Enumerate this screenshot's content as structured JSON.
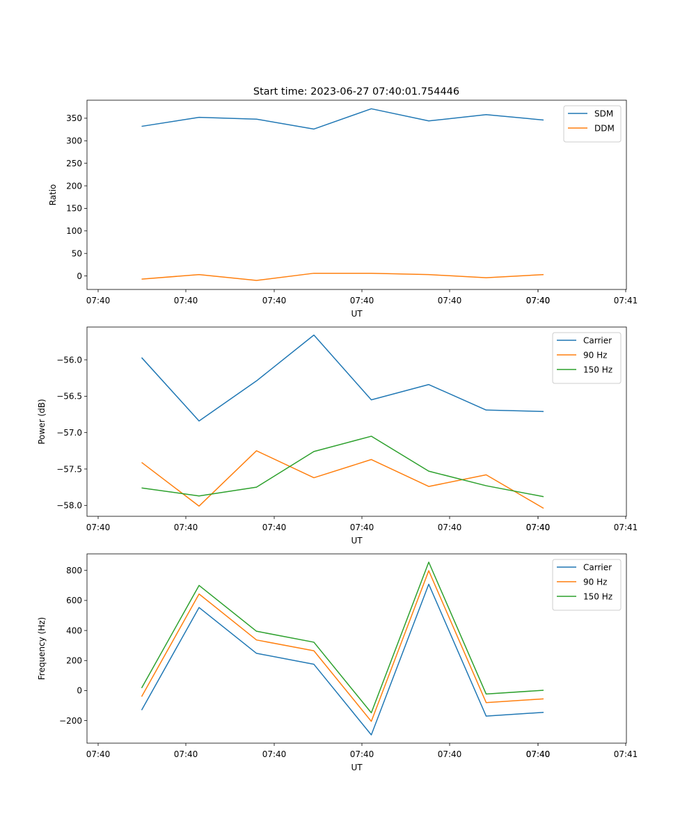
{
  "figure_title": "Start time: 2023-06-27 07:40:01.754446",
  "x_tick_labels": [
    "07:40",
    "07:40",
    "07:40",
    "07:40",
    "07:40",
    "07:40",
    "07:40",
    "07:41"
  ],
  "chart_data": [
    {
      "type": "line",
      "xlabel": "UT",
      "ylabel": "Ratio",
      "ylim": [
        -30,
        390
      ],
      "yticks": [
        0,
        50,
        100,
        150,
        200,
        250,
        300,
        350
      ],
      "ytick_labels": [
        "0",
        "50",
        "100",
        "150",
        "200",
        "250",
        "300",
        "350"
      ],
      "legend_position": "top-right",
      "grid": false,
      "series": [
        {
          "name": "SDM",
          "color": "#1f77b4",
          "values": [
            332,
            352,
            348,
            326,
            371,
            344,
            358,
            346
          ]
        },
        {
          "name": "DDM",
          "color": "#ff7f0e",
          "values": [
            -7,
            3,
            -10,
            6,
            6,
            3,
            -4,
            3
          ]
        }
      ]
    },
    {
      "type": "line",
      "xlabel": "UT",
      "ylabel": "Power (dB)",
      "ylim": [
        -58.15,
        -55.55
      ],
      "yticks": [
        -56.0,
        -56.5,
        -57.0,
        -57.5,
        -58.0
      ],
      "ytick_labels": [
        "−56.0",
        "−56.5",
        "−57.0",
        "−57.5",
        "−58.0"
      ],
      "legend_position": "top-right",
      "grid": false,
      "series": [
        {
          "name": "Carrier",
          "color": "#1f77b4",
          "values": [
            -55.97,
            -56.84,
            -56.29,
            -55.66,
            -56.55,
            -56.34,
            -56.69,
            -56.71
          ]
        },
        {
          "name": "90 Hz",
          "color": "#ff7f0e",
          "values": [
            -57.41,
            -58.01,
            -57.25,
            -57.62,
            -57.37,
            -57.74,
            -57.58,
            -58.04
          ]
        },
        {
          "name": "150 Hz",
          "color": "#2ca02c",
          "values": [
            -57.76,
            -57.87,
            -57.75,
            -57.26,
            -57.05,
            -57.53,
            -57.73,
            -57.88
          ]
        }
      ]
    },
    {
      "type": "line",
      "xlabel": "UT",
      "ylabel": "Frequency (Hz)",
      "ylim": [
        -350,
        910
      ],
      "yticks": [
        -200,
        0,
        200,
        400,
        600,
        800
      ],
      "ytick_labels": [
        "−200",
        "0",
        "200",
        "400",
        "600",
        "800"
      ],
      "legend_position": "top-right",
      "grid": false,
      "series": [
        {
          "name": "Carrier",
          "color": "#1f77b4",
          "values": [
            -130,
            553,
            248,
            175,
            -295,
            708,
            -170,
            -145
          ]
        },
        {
          "name": "90 Hz",
          "color": "#ff7f0e",
          "values": [
            -40,
            643,
            337,
            265,
            -205,
            798,
            -80,
            -55
          ]
        },
        {
          "name": "150 Hz",
          "color": "#2ca02c",
          "values": [
            17,
            700,
            395,
            322,
            -148,
            855,
            -23,
            2
          ]
        }
      ]
    }
  ]
}
